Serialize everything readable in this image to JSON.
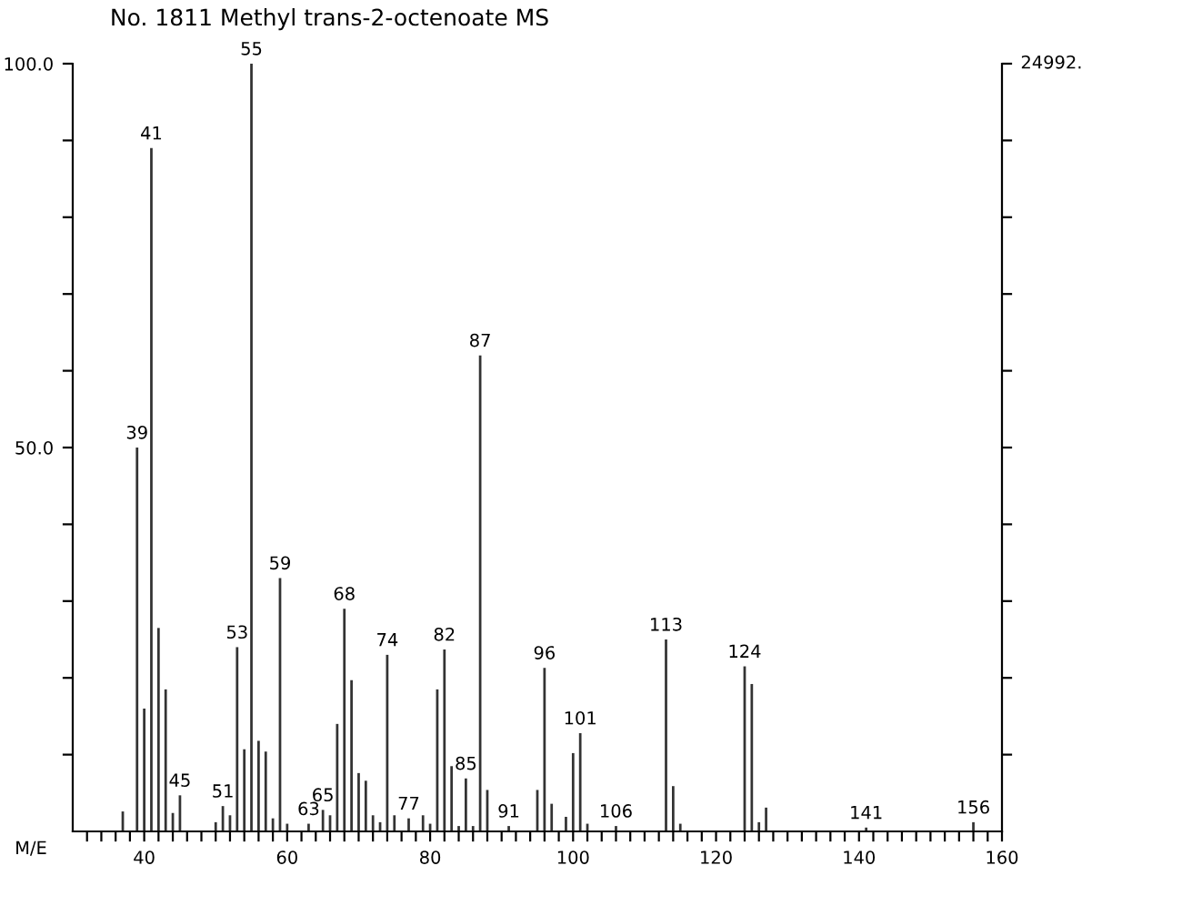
{
  "chart_data": {
    "type": "bar",
    "title": "No. 1811 Methyl trans-2-octenoate MS",
    "xlabel": "M/E",
    "x": [
      37,
      39,
      40,
      41,
      42,
      43,
      44,
      45,
      50,
      51,
      52,
      53,
      54,
      55,
      56,
      57,
      58,
      59,
      60,
      63,
      65,
      66,
      67,
      68,
      69,
      70,
      71,
      72,
      73,
      74,
      75,
      77,
      79,
      80,
      81,
      82,
      83,
      84,
      85,
      86,
      87,
      88,
      91,
      95,
      96,
      97,
      99,
      100,
      101,
      102,
      106,
      113,
      114,
      115,
      124,
      125,
      126,
      127,
      141,
      156
    ],
    "series": [
      {
        "color": "#333333",
        "values": [
          2.6,
          50,
          16,
          89,
          26.5,
          18.5,
          2.4,
          4.7,
          1.2,
          3.3,
          2.1,
          24,
          10.7,
          100,
          11.8,
          10.4,
          1.7,
          33,
          1,
          1,
          2.8,
          2.1,
          14,
          29,
          19.7,
          7.6,
          6.6,
          2.1,
          1.2,
          23,
          2.1,
          1.7,
          2.1,
          1,
          18.5,
          23.7,
          8.5,
          0.7,
          6.9,
          0.7,
          62,
          5.4,
          0.7,
          5.4,
          21.3,
          3.6,
          1.9,
          10.2,
          12.8,
          1,
          0.7,
          25,
          5.9,
          1,
          21.5,
          19.2,
          1.2,
          3.1,
          0.5,
          1.2
        ]
      }
    ],
    "annotations": [
      "24992.",
      {
        "text": "39",
        "x": 39,
        "y": 50
      },
      {
        "text": "41",
        "x": 41,
        "y": 89
      },
      {
        "text": "45",
        "x": 45,
        "y": 4.7
      },
      {
        "text": "51",
        "x": 51,
        "y": 3.3
      },
      {
        "text": "53",
        "x": 53,
        "y": 24
      },
      {
        "text": "55",
        "x": 55,
        "y": 100
      },
      {
        "text": "59",
        "x": 59,
        "y": 33
      },
      {
        "text": "63",
        "x": 63,
        "y": 1
      },
      {
        "text": "65",
        "x": 65,
        "y": 2.8
      },
      {
        "text": "68",
        "x": 68,
        "y": 29
      },
      {
        "text": "74",
        "x": 74,
        "y": 23
      },
      {
        "text": "77",
        "x": 77,
        "y": 1.7
      },
      {
        "text": "82",
        "x": 82,
        "y": 23.7
      },
      {
        "text": "85",
        "x": 85,
        "y": 6.9
      },
      {
        "text": "87",
        "x": 87,
        "y": 62
      },
      {
        "text": "91",
        "x": 91,
        "y": 0.7
      },
      {
        "text": "96",
        "x": 96,
        "y": 21.3
      },
      {
        "text": "101",
        "x": 101,
        "y": 12.8
      },
      {
        "text": "106",
        "x": 106,
        "y": 0.7
      },
      {
        "text": "113",
        "x": 113,
        "y": 25
      },
      {
        "text": "124",
        "x": 124,
        "y": 21.5
      },
      {
        "text": "141",
        "x": 141,
        "y": 0.5
      },
      {
        "text": "156",
        "x": 156,
        "y": 1.2
      }
    ],
    "xlim": [
      30,
      160
    ],
    "xticks": [
      {
        "value": 32,
        "label": null
      },
      {
        "value": 34,
        "label": null
      },
      {
        "value": 36,
        "label": null
      },
      {
        "value": 38,
        "label": null
      },
      40,
      {
        "value": 42,
        "label": null
      },
      {
        "value": 44,
        "label": null
      },
      {
        "value": 46,
        "label": null
      },
      {
        "value": 48,
        "label": null
      },
      {
        "value": 50,
        "label": null
      },
      {
        "value": 52,
        "label": null
      },
      {
        "value": 54,
        "label": null
      },
      {
        "value": 56,
        "label": null
      },
      {
        "value": 58,
        "label": null
      },
      60,
      {
        "value": 62,
        "label": null
      },
      {
        "value": 64,
        "label": null
      },
      {
        "value": 66,
        "label": null
      },
      {
        "value": 68,
        "label": null
      },
      {
        "value": 70,
        "label": null
      },
      {
        "value": 72,
        "label": null
      },
      {
        "value": 74,
        "label": null
      },
      {
        "value": 76,
        "label": null
      },
      {
        "value": 78,
        "label": null
      },
      80,
      {
        "value": 82,
        "label": null
      },
      {
        "value": 84,
        "label": null
      },
      {
        "value": 86,
        "label": null
      },
      {
        "value": 88,
        "label": null
      },
      {
        "value": 90,
        "label": null
      },
      {
        "value": 92,
        "label": null
      },
      {
        "value": 94,
        "label": null
      },
      {
        "value": 96,
        "label": null
      },
      {
        "value": 98,
        "label": null
      },
      100,
      {
        "value": 102,
        "label": null
      },
      {
        "value": 104,
        "label": null
      },
      {
        "value": 106,
        "label": null
      },
      {
        "value": 108,
        "label": null
      },
      {
        "value": 110,
        "label": null
      },
      {
        "value": 112,
        "label": null
      },
      {
        "value": 114,
        "label": null
      },
      {
        "value": 116,
        "label": null
      },
      {
        "value": 118,
        "label": null
      },
      120,
      {
        "value": 122,
        "label": null
      },
      {
        "value": 124,
        "label": null
      },
      {
        "value": 126,
        "label": null
      },
      {
        "value": 128,
        "label": null
      },
      {
        "value": 130,
        "label": null
      },
      {
        "value": 132,
        "label": null
      },
      {
        "value": 134,
        "label": null
      },
      {
        "value": 136,
        "label": null
      },
      {
        "value": 138,
        "label": null
      },
      140,
      {
        "value": 142,
        "label": null
      },
      {
        "value": 144,
        "label": null
      },
      {
        "value": 146,
        "label": null
      },
      {
        "value": 148,
        "label": null
      },
      {
        "value": 150,
        "label": null
      },
      {
        "value": 152,
        "label": null
      },
      {
        "value": 154,
        "label": null
      },
      {
        "value": 156,
        "label": null
      },
      {
        "value": 158,
        "label": null
      },
      160
    ],
    "ylim": [
      0,
      100
    ],
    "yticks": [
      {
        "value": 10,
        "label": null
      },
      {
        "value": 20,
        "label": null
      },
      {
        "value": 30,
        "label": null
      },
      {
        "value": 40,
        "label": null
      },
      {
        "value": 50,
        "label": "50.0"
      },
      {
        "value": 60,
        "label": null
      },
      {
        "value": 70,
        "label": null
      },
      {
        "value": 80,
        "label": null
      },
      {
        "value": 90,
        "label": null
      },
      {
        "value": 100,
        "label": "100.0"
      }
    ],
    "grid": false,
    "legend": false
  }
}
